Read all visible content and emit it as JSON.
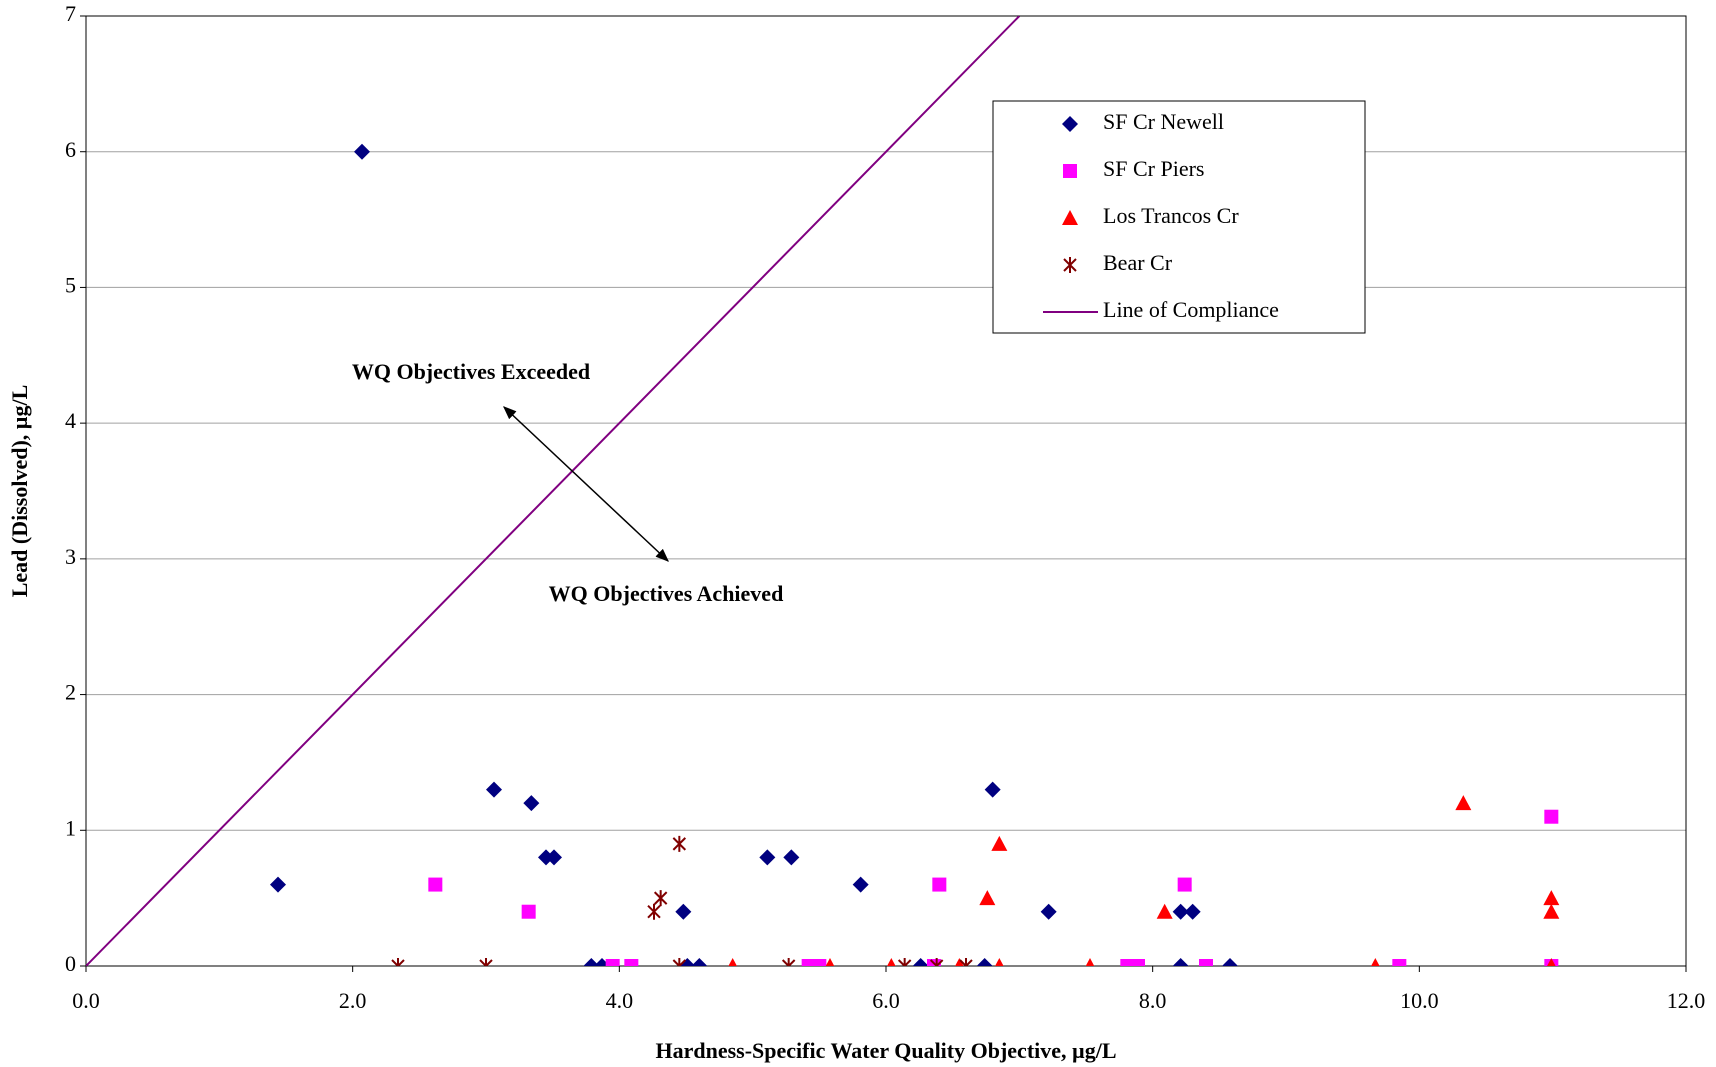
{
  "chart_data": {
    "type": "scatter",
    "x_label": "Hardness-Specific Water Quality Objective, µg/L",
    "y_label": "Lead (Dissolved), µg/L",
    "annotations": [
      "WQ Objectives Exceeded",
      "WQ Objectives Achieved"
    ],
    "xlim": [
      0,
      12
    ],
    "ylim": [
      0,
      7
    ],
    "xticks": [
      {
        "value": 0,
        "label": "0.0"
      },
      {
        "value": 2,
        "label": "2.0"
      },
      {
        "value": 4,
        "label": "4.0"
      },
      {
        "value": 6,
        "label": "6.0"
      },
      {
        "value": 8,
        "label": "8.0"
      },
      {
        "value": 10,
        "label": "10.0"
      },
      {
        "value": 12,
        "label": "12.0"
      }
    ],
    "yticks": [
      0,
      1,
      2,
      3,
      4,
      5,
      6,
      7
    ],
    "grid": true,
    "legend": "upper right",
    "series": [
      {
        "name": "SF Cr Newell",
        "color": "#000080",
        "marker": "diamond",
        "x": [
          1.44,
          2.07,
          3.06,
          3.34,
          3.45,
          3.51,
          3.79,
          3.87,
          4.48,
          4.51,
          4.6,
          5.11,
          5.29,
          5.81,
          6.26,
          6.74,
          6.8,
          7.22,
          8.21,
          8.3,
          8.21,
          8.58
        ],
        "values": [
          0.6,
          6,
          1.3,
          1.2,
          0.8,
          0.8,
          0,
          0,
          0.4,
          0,
          0,
          0.8,
          0.8,
          0.6,
          0,
          0,
          1.3,
          0.4,
          0.4,
          0.4,
          0,
          0
        ]
      },
      {
        "name": "SF Cr Piers",
        "color": "#ff00ff",
        "marker": "square",
        "x": [
          2.62,
          3.32,
          3.95,
          4.09,
          5.42,
          5.5,
          6.36,
          6.4,
          7.81,
          7.89,
          8.24,
          8.4,
          9.85,
          10.99,
          10.99
        ],
        "values": [
          0.6,
          0.4,
          0,
          0,
          0,
          0,
          0,
          0.6,
          0,
          0,
          0.6,
          0,
          0,
          1.1,
          0
        ]
      },
      {
        "name": "Los Trancos Cr",
        "color": "#ff0000",
        "marker": "triangle",
        "x": [
          4.85,
          5.58,
          6.04,
          6.55,
          6.76,
          6.85,
          6.85,
          7.53,
          8.09,
          9.67,
          10.33,
          10.99,
          10.99,
          10.99
        ],
        "values": [
          0,
          0,
          0,
          0,
          0.5,
          0.9,
          0,
          0,
          0.4,
          0,
          1.2,
          0.5,
          0.4,
          0
        ]
      },
      {
        "name": "Bear Cr",
        "color": "#800000",
        "marker": "star",
        "x": [
          2.34,
          3.0,
          4.26,
          4.31,
          4.45,
          4.45,
          5.27,
          6.14,
          6.38,
          6.6
        ],
        "values": [
          0,
          0,
          0.4,
          0.5,
          0.9,
          0,
          0,
          0,
          0,
          0
        ]
      },
      {
        "name": "Line of Compliance",
        "color": "#800080",
        "marker": "line",
        "x": [
          0,
          7
        ],
        "values": [
          0,
          7
        ]
      }
    ]
  }
}
